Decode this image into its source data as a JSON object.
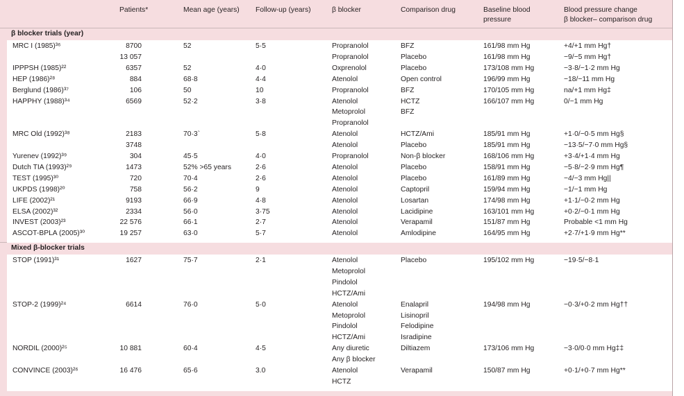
{
  "headers": {
    "patients": "Patients*",
    "mean_age": "Mean age (years)",
    "follow_up": "Follow-up (years)",
    "beta_blocker": "β blocker",
    "comparison_drug": "Comparison drug",
    "baseline_bp_line1": "Baseline blood",
    "baseline_bp_line2": "pressure",
    "bp_change_line1": "Blood pressure change",
    "bp_change_line2": "β blocker– comparison drug"
  },
  "sections": [
    {
      "title": "β blocker trials (year)",
      "rows": [
        {
          "trial": "MRC I (1985)³⁶",
          "patients": "8700",
          "age": "52",
          "fu": "5·5",
          "bb": "Propranolol",
          "cd": "BFZ",
          "bp": "161/98 mm Hg",
          "chg": "+4/+1 mm Hg†"
        },
        {
          "trial": "",
          "patients": "13 057",
          "age": "",
          "fu": "",
          "bb": "Propranolol",
          "cd": "Placebo",
          "bp": "161/98 mm Hg",
          "chg": "−9/−5 mm Hg†"
        },
        {
          "trial": "IPPPSH (1985)²²",
          "patients": "6357",
          "age": "52",
          "fu": "4·0",
          "bb": "Oxprenolol",
          "cd": "Placebo",
          "bp": "173/108 mm Hg",
          "chg": "−3·8/−1·2 mm Hg"
        },
        {
          "trial": "HEP (1986)²⁸",
          "patients": "884",
          "age": "68·8",
          "fu": "4·4",
          "bb": "Atenolol",
          "cd": "Open control",
          "bp": "196/99 mm Hg",
          "chg": "−18/−11 mm Hg"
        },
        {
          "trial": "Berglund (1986)³⁷",
          "patients": "106",
          "age": "50",
          "fu": "10",
          "bb": "Propranolol",
          "cd": "BFZ",
          "bp": "170/105 mm Hg",
          "chg": "na/+1 mm Hg‡"
        },
        {
          "trial": "HAPPHY (1988)³⁴",
          "patients": "6569",
          "age": "52·2",
          "fu": "3·8",
          "bb": "Atenolol",
          "cd": "HCTZ",
          "bp": "166/107 mm Hg",
          "chg": "0/−1 mm Hg"
        },
        {
          "trial": "",
          "patients": "",
          "age": "",
          "fu": "",
          "bb": "Metoprolol",
          "cd": "BFZ",
          "bp": "",
          "chg": ""
        },
        {
          "trial": "",
          "patients": "",
          "age": "",
          "fu": "",
          "bb": "Propranolol",
          "cd": "",
          "bp": "",
          "chg": ""
        },
        {
          "trial": "MRC Old (1992)³⁸",
          "patients": "2183",
          "age": "70·3`",
          "fu": "5·8",
          "bb": "Atenolol",
          "cd": "HCTZ/Ami",
          "bp": "185/91 mm Hg",
          "chg": "+1·0/−0·5 mm Hg§"
        },
        {
          "trial": "",
          "patients": "3748",
          "age": "",
          "fu": "",
          "bb": "Atenolol",
          "cd": "Placebo",
          "bp": "185/91 mm Hg",
          "chg": "−13·5/−7·0 mm Hg§"
        },
        {
          "trial": "Yurenev (1992)³⁹",
          "patients": "304",
          "age": "45·5",
          "fu": "4·0",
          "bb": "Propranolol",
          "cd": "Non-β blocker",
          "bp": "168/106 mm Hg",
          "chg": "+3·4/+1·4 mm Hg"
        },
        {
          "trial": "Dutch TIA (1993)²⁹",
          "patients": "1473",
          "age": "52% >65 years",
          "fu": "2·6",
          "bb": "Atenolol",
          "cd": "Placebo",
          "bp": "158/91 mm Hg",
          "chg": "−5·8/−2·9 mm Hg¶"
        },
        {
          "trial": "TEST (1995)³⁰",
          "patients": "720",
          "age": "70·4",
          "fu": "2·6",
          "bb": "Atenolol",
          "cd": "Placebo",
          "bp": "161/89 mm Hg",
          "chg": "−4/−3 mm Hg||"
        },
        {
          "trial": "UKPDS (1998)²⁰",
          "patients": "758",
          "age": "56·2",
          "fu": "9",
          "bb": "Atenolol",
          "cd": "Captopril",
          "bp": "159/94 mm Hg",
          "chg": "−1/−1 mm Hg"
        },
        {
          "trial": "LIFE (2002)²¹",
          "patients": "9193",
          "age": "66·9",
          "fu": "4·8",
          "bb": "Atenolol",
          "cd": "Losartan",
          "bp": "174/98 mm Hg",
          "chg": "+1·1/−0·2 mm Hg"
        },
        {
          "trial": "ELSA (2002)³²",
          "patients": "2334",
          "age": "56·0",
          "fu": "3·75",
          "bb": "Atenolol",
          "cd": "Lacidipine",
          "bp": "163/101 mm Hg",
          "chg": "+0·2/−0·1 mm Hg"
        },
        {
          "trial": "INVEST (2003)²³",
          "patients": "22 576",
          "age": "66·1",
          "fu": "2·7",
          "bb": "Atenolol",
          "cd": "Verapamil",
          "bp": "151/87 mm Hg",
          "chg": "Probable <1 mm Hg"
        },
        {
          "trial": "ASCOT-BPLA (2005)³⁰",
          "patients": "19 257",
          "age": "63·0",
          "fu": "5·7",
          "bb": "Atenolol",
          "cd": "Amlodipine",
          "bp": "164/95 mm Hg",
          "chg": "+2·7/+1·9 mm Hg**"
        }
      ]
    },
    {
      "title": "Mixed β-blocker trials",
      "rows": [
        {
          "trial": "STOP (1991)³¹",
          "patients": "1627",
          "age": "75·7",
          "fu": "2·1",
          "bb": "Atenolol",
          "cd": "Placebo",
          "bp": "195/102 mm Hg",
          "chg": "−19·5/−8·1"
        },
        {
          "trial": "",
          "patients": "",
          "age": "",
          "fu": "",
          "bb": "Metoprolol",
          "cd": "",
          "bp": "",
          "chg": ""
        },
        {
          "trial": "",
          "patients": "",
          "age": "",
          "fu": "",
          "bb": "Pindolol",
          "cd": "",
          "bp": "",
          "chg": ""
        },
        {
          "trial": "",
          "patients": "",
          "age": "",
          "fu": "",
          "bb": "HCTZ/Ami",
          "cd": "",
          "bp": "",
          "chg": ""
        },
        {
          "trial": "STOP-2 (1999)²⁴",
          "patients": "6614",
          "age": "76·0",
          "fu": "5·0",
          "bb": "Atenolol",
          "cd": "Enalapril",
          "bp": "194/98 mm Hg",
          "chg": "−0·3/+0·2 mm Hg††"
        },
        {
          "trial": "",
          "patients": "",
          "age": "",
          "fu": "",
          "bb": "Metoprolol",
          "cd": "Lisinopril",
          "bp": "",
          "chg": ""
        },
        {
          "trial": "",
          "patients": "",
          "age": "",
          "fu": "",
          "bb": "Pindolol",
          "cd": "Felodipine",
          "bp": "",
          "chg": ""
        },
        {
          "trial": "",
          "patients": "",
          "age": "",
          "fu": "",
          "bb": "HCTZ/Ami",
          "cd": "Isradipine",
          "bp": "",
          "chg": ""
        },
        {
          "trial": "NORDIL (2000)²⁵",
          "patients": "10 881",
          "age": "60·4",
          "fu": "4·5",
          "bb": "Any diuretic",
          "cd": "Diltiazem",
          "bp": "173/106 mm Hg",
          "chg": "−3·0/0·0 mm Hg‡‡"
        },
        {
          "trial": "",
          "patients": "",
          "age": "",
          "fu": "",
          "bb": "Any β blocker",
          "cd": "",
          "bp": "",
          "chg": ""
        },
        {
          "trial": "CONVINCE (2003)²⁶",
          "patients": "16 476",
          "age": "65·6",
          "fu": "3.0",
          "bb": "Atenolol",
          "cd": "Verapamil",
          "bp": "150/87 mm Hg",
          "chg": "+0·1/+0·7 mm Hg**"
        },
        {
          "trial": "",
          "patients": "",
          "age": "",
          "fu": "",
          "bb": "HCTZ",
          "cd": "",
          "bp": "",
          "chg": ""
        }
      ]
    }
  ]
}
